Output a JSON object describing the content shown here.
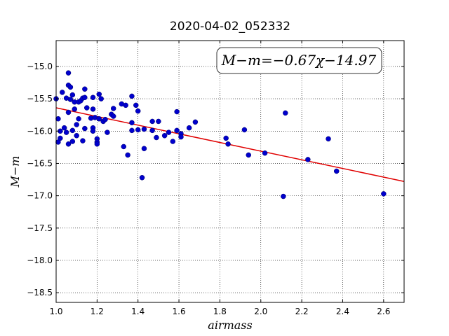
{
  "chart_data": {
    "type": "scatter",
    "title": "2020-04-02_052332",
    "xlabel": "airmass",
    "ylabel": "M−m",
    "xlim": [
      1.0,
      2.7
    ],
    "ylim": [
      -18.65,
      -14.6
    ],
    "x_ticks": [
      "1.0",
      "1.2",
      "1.4",
      "1.6",
      "1.8",
      "2.0",
      "2.2",
      "2.4",
      "2.6"
    ],
    "y_ticks": [
      "−15.0",
      "−15.5",
      "−16.0",
      "−16.5",
      "−17.0",
      "−17.5",
      "−18.0",
      "−18.5"
    ],
    "grid": true,
    "annotation": "M−m=−0.67χ−14.97",
    "fit": {
      "slope": -0.67,
      "intercept": -14.97,
      "color": "#e00000"
    },
    "marker_color": "#0000cc",
    "points": [
      [
        1.0,
        -15.5
      ],
      [
        1.01,
        -15.81
      ],
      [
        1.01,
        -16.17
      ],
      [
        1.02,
        -16.11
      ],
      [
        1.02,
        -16.0
      ],
      [
        1.03,
        -15.4
      ],
      [
        1.04,
        -15.95
      ],
      [
        1.05,
        -15.49
      ],
      [
        1.05,
        -16.02
      ],
      [
        1.06,
        -15.1
      ],
      [
        1.06,
        -15.29
      ],
      [
        1.06,
        -15.71
      ],
      [
        1.06,
        -16.2
      ],
      [
        1.07,
        -15.32
      ],
      [
        1.07,
        -15.51
      ],
      [
        1.08,
        -15.44
      ],
      [
        1.08,
        -15.99
      ],
      [
        1.08,
        -16.16
      ],
      [
        1.09,
        -15.55
      ],
      [
        1.09,
        -15.66
      ],
      [
        1.1,
        -15.9
      ],
      [
        1.1,
        -16.07
      ],
      [
        1.11,
        -15.55
      ],
      [
        1.11,
        -15.81
      ],
      [
        1.12,
        -15.53
      ],
      [
        1.13,
        -15.49
      ],
      [
        1.13,
        -16.15
      ],
      [
        1.14,
        -15.35
      ],
      [
        1.14,
        -15.48
      ],
      [
        1.14,
        -15.96
      ],
      [
        1.15,
        -15.64
      ],
      [
        1.17,
        -15.8
      ],
      [
        1.18,
        -15.48
      ],
      [
        1.18,
        -15.66
      ],
      [
        1.18,
        -15.95
      ],
      [
        1.18,
        -16.0
      ],
      [
        1.19,
        -15.79
      ],
      [
        1.2,
        -16.12
      ],
      [
        1.2,
        -16.17
      ],
      [
        1.2,
        -16.2
      ],
      [
        1.21,
        -15.43
      ],
      [
        1.21,
        -15.81
      ],
      [
        1.22,
        -15.5
      ],
      [
        1.23,
        -15.85
      ],
      [
        1.24,
        -15.82
      ],
      [
        1.25,
        -16.02
      ],
      [
        1.27,
        -15.74
      ],
      [
        1.28,
        -15.65
      ],
      [
        1.28,
        -15.77
      ],
      [
        1.32,
        -15.58
      ],
      [
        1.33,
        -16.24
      ],
      [
        1.34,
        -15.6
      ],
      [
        1.35,
        -16.37
      ],
      [
        1.37,
        -15.46
      ],
      [
        1.37,
        -15.87
      ],
      [
        1.37,
        -15.99
      ],
      [
        1.39,
        -15.6
      ],
      [
        1.4,
        -15.69
      ],
      [
        1.4,
        -15.98
      ],
      [
        1.42,
        -16.72
      ],
      [
        1.43,
        -15.97
      ],
      [
        1.43,
        -16.27
      ],
      [
        1.47,
        -15.85
      ],
      [
        1.47,
        -15.99
      ],
      [
        1.49,
        -16.1
      ],
      [
        1.5,
        -15.85
      ],
      [
        1.53,
        -16.07
      ],
      [
        1.55,
        -16.02
      ],
      [
        1.57,
        -16.16
      ],
      [
        1.59,
        -15.99
      ],
      [
        1.59,
        -15.7
      ],
      [
        1.61,
        -16.04
      ],
      [
        1.61,
        -16.09
      ],
      [
        1.65,
        -15.95
      ],
      [
        1.68,
        -15.86
      ],
      [
        1.83,
        -16.11
      ],
      [
        1.84,
        -16.2
      ],
      [
        1.92,
        -15.98
      ],
      [
        1.94,
        -16.37
      ],
      [
        2.02,
        -16.34
      ],
      [
        2.11,
        -17.01
      ],
      [
        2.12,
        -15.72
      ],
      [
        2.23,
        -16.44
      ],
      [
        2.33,
        -16.12
      ],
      [
        2.37,
        -16.62
      ],
      [
        2.6,
        -16.97
      ]
    ]
  }
}
